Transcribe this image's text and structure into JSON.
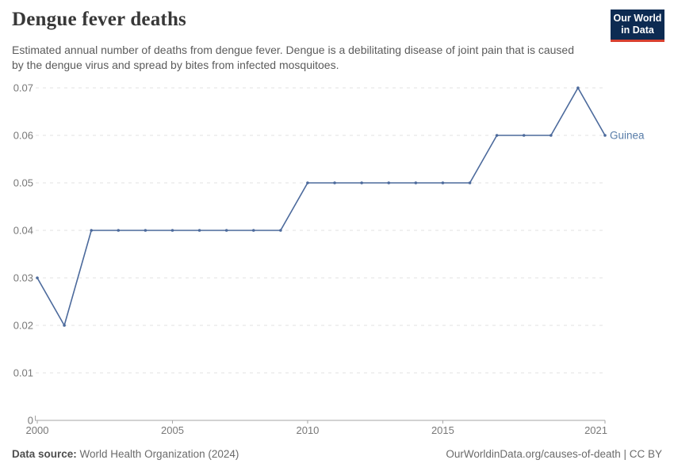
{
  "header": {
    "title": "Dengue fever deaths",
    "subtitle": "Estimated annual number of deaths from dengue fever. Dengue is a debilitating disease of joint pain that is caused by the dengue virus and spread by bites from infected mosquitoes.",
    "logo": {
      "line1": "Our World",
      "line2": "in Data"
    }
  },
  "footer": {
    "source_label": "Data source:",
    "source_text": " World Health Organization (2024)",
    "citation": "OurWorldinData.org/causes-of-death | CC BY"
  },
  "theme": {
    "logo_bg": "#0D2B52",
    "logo_red": "#D8402F",
    "title_color": "#383838",
    "subtitle_color": "#5B5B5B",
    "footer_color": "#6B6B6B"
  },
  "chart_data": {
    "type": "line",
    "title": "Dengue fever deaths",
    "xlabel": "",
    "ylabel": "",
    "x": [
      2000,
      2001,
      2002,
      2003,
      2004,
      2005,
      2006,
      2007,
      2008,
      2009,
      2010,
      2011,
      2012,
      2013,
      2014,
      2015,
      2016,
      2017,
      2018,
      2019,
      2020,
      2021
    ],
    "series": [
      {
        "name": "Guinea",
        "values": [
          0.03,
          0.02,
          0.04,
          0.04,
          0.04,
          0.04,
          0.04,
          0.04,
          0.04,
          0.04,
          0.05,
          0.05,
          0.05,
          0.05,
          0.05,
          0.05,
          0.05,
          0.06,
          0.06,
          0.06,
          0.07,
          0.06
        ]
      }
    ],
    "ylim": [
      0,
      0.07
    ],
    "yticks": [
      0,
      0.01,
      0.02,
      0.03,
      0.04,
      0.05,
      0.06,
      0.07
    ],
    "xticks": [
      2000,
      2005,
      2010,
      2015,
      2021
    ],
    "grid": "horizontal-dashed",
    "legend_position": "end-of-line-label",
    "markers": true,
    "colors": {
      "line": "#4C6A9C",
      "series_label": "#577CA8",
      "grid": "#E0E0E0",
      "axis": "#A5A5A5",
      "tick_text": "#787878"
    }
  }
}
